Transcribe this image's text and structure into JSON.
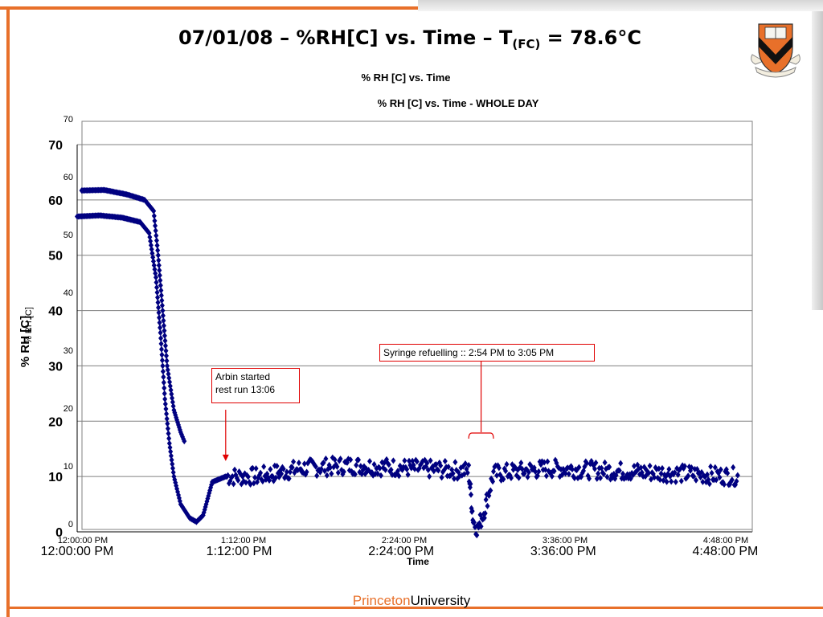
{
  "slide": {
    "title_main": "07/01/08 – %RH[C] vs. Time – T",
    "title_sub": "(FC)",
    "title_tail": " = 78.6°C"
  },
  "footer": {
    "brand": "Princeton",
    "rest": "University"
  },
  "logo": {
    "icon": "princeton-shield-icon"
  },
  "colors": {
    "accent": "#e8702a",
    "series": "#000080",
    "annotation": "#e00000",
    "grid": "#808080"
  },
  "chart_data": {
    "type": "scatter",
    "title": "% RH [C] vs. Time",
    "subtitle": "% RH [C] vs. Time - WHOLE DAY",
    "xlabel": "Time",
    "ylabel": "% RH [C]",
    "ylim": [
      0,
      70
    ],
    "yticks_small": [
      "0",
      "10",
      "20",
      "30",
      "40",
      "50",
      "60",
      "70"
    ],
    "yticks_large": [
      "0",
      "10",
      "20",
      "30",
      "40",
      "50",
      "60",
      "70"
    ],
    "xticks_small": [
      "12:00:00 PM",
      "1:12:00 PM",
      "2:24:00 PM",
      "3:36:00 PM",
      "4:48:00 PM"
    ],
    "xticks_large": [
      "12:00:00 PM",
      "1:12:00 PM",
      "2:24:00 PM",
      "3:36:00 PM",
      "4:48:00 PM"
    ],
    "xlim_minutes_after_noon": [
      0,
      300
    ],
    "grid": true,
    "series": [
      {
        "marker": "diamond",
        "points_time_rh": [
          [
            "12:00",
            57.0
          ],
          [
            "12:10",
            57.2
          ],
          [
            "12:20",
            56.8
          ],
          [
            "12:28",
            56.0
          ],
          [
            "12:32",
            54.0
          ],
          [
            "12:35",
            46.0
          ],
          [
            "12:37",
            36.0
          ],
          [
            "12:39",
            24.0
          ],
          [
            "12:41",
            16.0
          ],
          [
            "12:43",
            10.0
          ],
          [
            "12:46",
            5.0
          ],
          [
            "12:50",
            2.5
          ],
          [
            "12:53",
            1.8
          ],
          [
            "12:56",
            3.0
          ],
          [
            "13:00",
            9.0
          ],
          [
            "13:06",
            10.0
          ],
          [
            "13:20",
            10.0
          ],
          [
            "13:40",
            11.5
          ],
          [
            "14:00",
            12.0
          ],
          [
            "14:30",
            11.5
          ],
          [
            "14:54",
            11.0
          ],
          [
            "14:56",
            2.0
          ],
          [
            "14:58",
            0.5
          ],
          [
            "15:01",
            4.0
          ],
          [
            "15:05",
            10.5
          ],
          [
            "15:30",
            11.5
          ],
          [
            "16:00",
            11.0
          ],
          [
            "16:30",
            10.5
          ],
          [
            "16:54",
            10.0
          ]
        ]
      },
      {
        "marker": "diamond",
        "points_time_rh": [
          [
            "12:02",
            61.7
          ],
          [
            "12:12",
            61.8
          ],
          [
            "12:22",
            61.0
          ],
          [
            "12:30",
            60.0
          ],
          [
            "12:34",
            58.0
          ],
          [
            "12:36",
            50.0
          ],
          [
            "12:38",
            40.0
          ],
          [
            "12:40",
            30.0
          ],
          [
            "12:43",
            22.0
          ],
          [
            "12:46",
            18.0
          ],
          [
            "12:48",
            16.0
          ]
        ]
      }
    ],
    "annotations": [
      {
        "text_line1": "Arbin started",
        "text_line2": "rest run 13:06",
        "time": "13:06",
        "rh": 12.5
      },
      {
        "text": "Syringe refuelling :: 2:54 PM to 3:05 PM",
        "time_start": "14:54",
        "time_end": "15:05",
        "rh": 16.5
      }
    ]
  }
}
